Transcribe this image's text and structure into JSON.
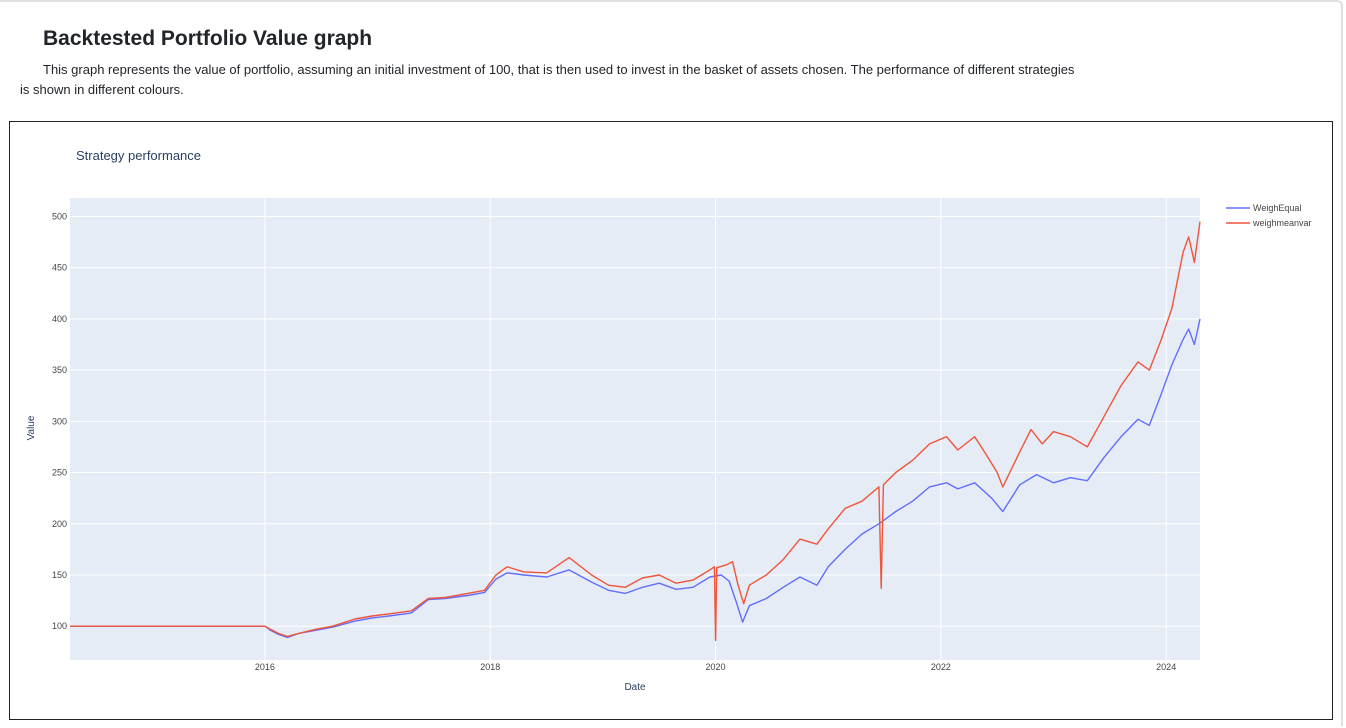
{
  "page": {
    "heading": "Backtested Portfolio Value graph",
    "description": "This graph represents the value of portfolio, assuming an initial investment of 100, that is then used to invest in the basket of assets chosen. The performance of different strategies is shown in different colours."
  },
  "colors": {
    "plot_bg": "#e5ecf6",
    "grid": "#ffffff",
    "weighequal": "#636efa",
    "weighmeanvar": "#ef553b"
  },
  "chart_data": {
    "type": "line",
    "title": "Strategy performance",
    "xlabel": "Date",
    "ylabel": "Value",
    "xlim": [
      2014.27,
      2024.3
    ],
    "ylim": [
      67,
      518
    ],
    "x_ticks": [
      2016,
      2018,
      2020,
      2022,
      2024
    ],
    "y_ticks": [
      100,
      150,
      200,
      250,
      300,
      350,
      400,
      450,
      500
    ],
    "legend_position": "top-right",
    "series": [
      {
        "name": "WeighEqual",
        "color": "#636efa",
        "points": [
          [
            2014.27,
            100
          ],
          [
            2016.0,
            100
          ],
          [
            2016.05,
            96
          ],
          [
            2016.12,
            92
          ],
          [
            2016.2,
            89
          ],
          [
            2016.3,
            93
          ],
          [
            2016.45,
            96
          ],
          [
            2016.6,
            99
          ],
          [
            2016.8,
            105
          ],
          [
            2016.95,
            108
          ],
          [
            2017.1,
            110
          ],
          [
            2017.3,
            113
          ],
          [
            2017.45,
            126
          ],
          [
            2017.6,
            127
          ],
          [
            2017.8,
            130
          ],
          [
            2017.95,
            133
          ],
          [
            2018.05,
            146
          ],
          [
            2018.15,
            152
          ],
          [
            2018.3,
            150
          ],
          [
            2018.5,
            148
          ],
          [
            2018.7,
            155
          ],
          [
            2018.9,
            143
          ],
          [
            2019.05,
            135
          ],
          [
            2019.2,
            132
          ],
          [
            2019.35,
            138
          ],
          [
            2019.5,
            142
          ],
          [
            2019.65,
            136
          ],
          [
            2019.8,
            138
          ],
          [
            2019.95,
            148
          ],
          [
            2020.05,
            150
          ],
          [
            2020.12,
            144
          ],
          [
            2020.18,
            125
          ],
          [
            2020.24,
            104
          ],
          [
            2020.3,
            120
          ],
          [
            2020.45,
            127
          ],
          [
            2020.6,
            138
          ],
          [
            2020.75,
            148
          ],
          [
            2020.9,
            140
          ],
          [
            2021.0,
            158
          ],
          [
            2021.15,
            175
          ],
          [
            2021.3,
            190
          ],
          [
            2021.45,
            200
          ],
          [
            2021.6,
            212
          ],
          [
            2021.75,
            222
          ],
          [
            2021.9,
            236
          ],
          [
            2022.05,
            240
          ],
          [
            2022.15,
            234
          ],
          [
            2022.3,
            240
          ],
          [
            2022.45,
            225
          ],
          [
            2022.55,
            212
          ],
          [
            2022.7,
            238
          ],
          [
            2022.85,
            248
          ],
          [
            2023.0,
            240
          ],
          [
            2023.15,
            245
          ],
          [
            2023.3,
            242
          ],
          [
            2023.45,
            265
          ],
          [
            2023.6,
            285
          ],
          [
            2023.75,
            302
          ],
          [
            2023.85,
            296
          ],
          [
            2023.95,
            325
          ],
          [
            2024.05,
            355
          ],
          [
            2024.15,
            380
          ],
          [
            2024.2,
            390
          ],
          [
            2024.25,
            375
          ],
          [
            2024.3,
            400
          ]
        ]
      },
      {
        "name": "weighmeanvar",
        "color": "#ef553b",
        "points": [
          [
            2014.27,
            100
          ],
          [
            2016.0,
            100
          ],
          [
            2016.05,
            97
          ],
          [
            2016.12,
            93
          ],
          [
            2016.2,
            90
          ],
          [
            2016.3,
            93
          ],
          [
            2016.45,
            97
          ],
          [
            2016.6,
            100
          ],
          [
            2016.8,
            107
          ],
          [
            2016.95,
            110
          ],
          [
            2017.1,
            112
          ],
          [
            2017.3,
            115
          ],
          [
            2017.45,
            127
          ],
          [
            2017.6,
            128
          ],
          [
            2017.8,
            132
          ],
          [
            2017.95,
            135
          ],
          [
            2018.05,
            150
          ],
          [
            2018.15,
            158
          ],
          [
            2018.3,
            153
          ],
          [
            2018.5,
            152
          ],
          [
            2018.7,
            167
          ],
          [
            2018.9,
            150
          ],
          [
            2019.05,
            140
          ],
          [
            2019.2,
            138
          ],
          [
            2019.35,
            147
          ],
          [
            2019.5,
            150
          ],
          [
            2019.65,
            142
          ],
          [
            2019.8,
            145
          ],
          [
            2019.95,
            155
          ],
          [
            2019.99,
            158
          ],
          [
            2020.0,
            86
          ],
          [
            2020.01,
            157
          ],
          [
            2020.1,
            160
          ],
          [
            2020.15,
            163
          ],
          [
            2020.2,
            140
          ],
          [
            2020.25,
            122
          ],
          [
            2020.3,
            140
          ],
          [
            2020.45,
            150
          ],
          [
            2020.6,
            165
          ],
          [
            2020.75,
            185
          ],
          [
            2020.9,
            180
          ],
          [
            2021.0,
            195
          ],
          [
            2021.15,
            215
          ],
          [
            2021.3,
            222
          ],
          [
            2021.45,
            236
          ],
          [
            2021.47,
            137
          ],
          [
            2021.49,
            238
          ],
          [
            2021.6,
            250
          ],
          [
            2021.75,
            262
          ],
          [
            2021.9,
            278
          ],
          [
            2022.05,
            285
          ],
          [
            2022.15,
            272
          ],
          [
            2022.3,
            285
          ],
          [
            2022.4,
            268
          ],
          [
            2022.5,
            250
          ],
          [
            2022.55,
            236
          ],
          [
            2022.7,
            270
          ],
          [
            2022.8,
            292
          ],
          [
            2022.9,
            278
          ],
          [
            2023.0,
            290
          ],
          [
            2023.15,
            285
          ],
          [
            2023.3,
            275
          ],
          [
            2023.45,
            305
          ],
          [
            2023.6,
            335
          ],
          [
            2023.75,
            358
          ],
          [
            2023.85,
            350
          ],
          [
            2023.95,
            378
          ],
          [
            2024.05,
            410
          ],
          [
            2024.15,
            465
          ],
          [
            2024.2,
            480
          ],
          [
            2024.25,
            455
          ],
          [
            2024.3,
            495
          ]
        ]
      }
    ]
  }
}
